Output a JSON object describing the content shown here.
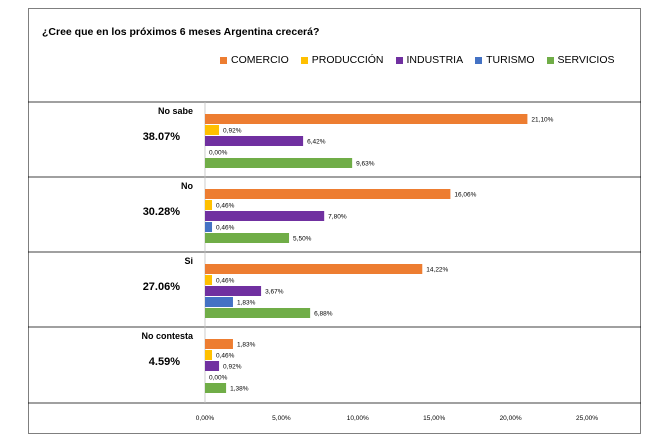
{
  "chart_data": {
    "type": "bar",
    "orientation": "horizontal",
    "title": "¿Cree que en los próximos 6 meses Argentina crecerá?",
    "categories": [
      "No sabe",
      "No",
      "Si",
      "No contesta"
    ],
    "category_totals": [
      "38.07%",
      "30.28%",
      "27.06%",
      "4.59%"
    ],
    "series": [
      {
        "name": "COMERCIO",
        "color": "#ED7D31",
        "values": [
          21.1,
          16.06,
          14.22,
          1.83
        ],
        "labels": [
          "21,10%",
          "16,06%",
          "14,22%",
          "1,83%"
        ]
      },
      {
        "name": "PRODUCCIÓN",
        "color": "#FFC000",
        "values": [
          0.92,
          0.46,
          0.46,
          0.46
        ],
        "labels": [
          "0,92%",
          "0,46%",
          "0,46%",
          "0,46%"
        ]
      },
      {
        "name": "INDUSTRIA",
        "color": "#7030A0",
        "values": [
          6.42,
          7.8,
          3.67,
          0.92
        ],
        "labels": [
          "6,42%",
          "7,80%",
          "3,67%",
          "0,92%"
        ]
      },
      {
        "name": "TURISMO",
        "color": "#4472C4",
        "values": [
          0.0,
          0.46,
          1.83,
          0.0
        ],
        "labels": [
          "0,00%",
          "0,46%",
          "1,83%",
          "0,00%"
        ]
      },
      {
        "name": "SERVICIOS",
        "color": "#70AD47",
        "values": [
          9.63,
          5.5,
          6.88,
          1.38
        ],
        "labels": [
          "9,63%",
          "5,50%",
          "6,88%",
          "1,38%"
        ]
      }
    ],
    "xlim": [
      0,
      25
    ],
    "x_ticks": [
      0,
      5,
      10,
      15,
      20,
      25
    ],
    "x_tick_labels": [
      "0,00%",
      "5,00%",
      "10,00%",
      "15,00%",
      "20,00%",
      "25,00%"
    ],
    "legend": "top",
    "grid": false
  }
}
